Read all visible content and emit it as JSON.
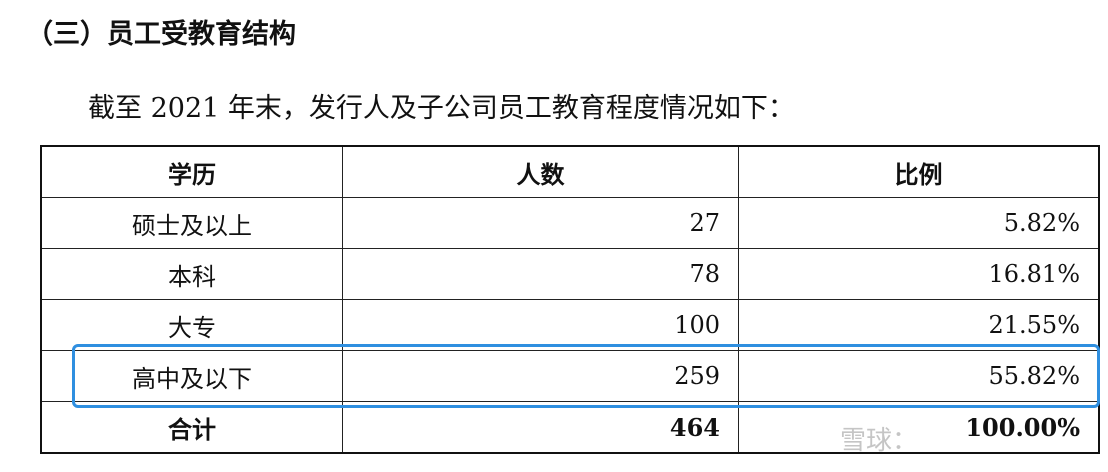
{
  "heading": "（三）员工受教育结构",
  "intro": "截至 2021 年末，发行人及子公司员工教育程度情况如下：",
  "table": {
    "headers": [
      "学历",
      "人数",
      "比例"
    ],
    "rows": [
      [
        "硕士及以上",
        "27",
        "5.82%"
      ],
      [
        "本科",
        "78",
        "16.81%"
      ],
      [
        "大专",
        "100",
        "21.55%"
      ],
      [
        "高中及以下",
        "259",
        "55.82%"
      ]
    ],
    "total": [
      "合计",
      "464",
      "100.00%"
    ]
  },
  "highlight_color": "#2f8fe0",
  "watermark": "雪球："
}
